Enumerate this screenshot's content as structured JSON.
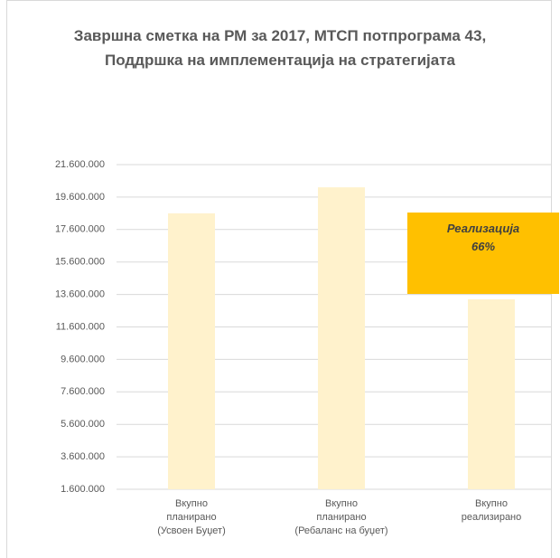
{
  "chart_data": {
    "type": "bar",
    "title": "Завршна сметка на РМ за 2017, МТСП потпрограма 43, Поддршка на имплементација на стратегијата",
    "categories": [
      "Вкупно\nпланирано\n(Усвоен Буџет)",
      "Вкупно\nпланирано\n(Ребаланс на буџет)",
      "Вкупно\nреализирано"
    ],
    "values": [
      18600000,
      20200000,
      13300000
    ],
    "color": "#fff2cc",
    "ylim": [
      1600000,
      21600000
    ],
    "yticks": [
      {
        "value": 1600000,
        "label": "1.600.000"
      },
      {
        "value": 3600000,
        "label": "3.600.000"
      },
      {
        "value": 5600000,
        "label": "5.600.000"
      },
      {
        "value": 7600000,
        "label": "7.600.000"
      },
      {
        "value": 9600000,
        "label": "9.600.000"
      },
      {
        "value": 11600000,
        "label": "11.600.000"
      },
      {
        "value": 13600000,
        "label": "13.600.000"
      },
      {
        "value": 15600000,
        "label": "15.600.000"
      },
      {
        "value": 17600000,
        "label": "17.600.000"
      },
      {
        "value": 19600000,
        "label": "19.600.000"
      },
      {
        "value": 21600000,
        "label": "21.600.000"
      }
    ],
    "grid": true,
    "annotation": "Реализација\n66%",
    "annotation_color": "#ffc000"
  }
}
